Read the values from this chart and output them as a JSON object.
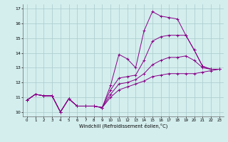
{
  "xlabel": "Windchill (Refroidissement éolien,°C)",
  "background_color": "#d4eeee",
  "grid_color": "#aacaca",
  "line_color": "#880088",
  "spine_color": "#666666",
  "ylim": [
    9.7,
    17.3
  ],
  "xlim": [
    -0.5,
    23.5
  ],
  "yticks": [
    10,
    11,
    12,
    13,
    14,
    15,
    16,
    17
  ],
  "xticks": [
    0,
    1,
    2,
    3,
    4,
    5,
    6,
    7,
    8,
    9,
    10,
    11,
    12,
    13,
    14,
    15,
    16,
    17,
    18,
    19,
    20,
    21,
    22,
    23
  ],
  "series": [
    {
      "x": [
        0,
        1,
        2,
        3,
        4,
        5,
        6,
        7,
        8,
        9,
        10,
        11,
        12,
        13,
        14,
        15,
        16,
        17,
        18,
        19,
        20,
        21,
        22,
        23
      ],
      "y": [
        10.8,
        11.2,
        11.1,
        11.1,
        10.0,
        10.9,
        10.4,
        10.4,
        10.4,
        10.3,
        11.8,
        13.9,
        13.6,
        13.0,
        15.5,
        16.8,
        16.5,
        16.4,
        16.3,
        15.2,
        14.2,
        13.1,
        12.9,
        12.9
      ]
    },
    {
      "x": [
        0,
        1,
        2,
        3,
        4,
        5,
        6,
        7,
        8,
        9,
        10,
        11,
        12,
        13,
        14,
        15,
        16,
        17,
        18,
        19,
        20,
        21,
        22,
        23
      ],
      "y": [
        10.8,
        11.2,
        11.1,
        11.1,
        10.0,
        10.9,
        10.4,
        10.4,
        10.4,
        10.3,
        11.5,
        12.3,
        12.4,
        12.5,
        13.5,
        14.8,
        15.1,
        15.2,
        15.2,
        15.2,
        14.2,
        13.1,
        12.9,
        12.9
      ]
    },
    {
      "x": [
        0,
        1,
        2,
        3,
        4,
        5,
        6,
        7,
        8,
        9,
        10,
        11,
        12,
        13,
        14,
        15,
        16,
        17,
        18,
        19,
        20,
        21,
        22,
        23
      ],
      "y": [
        10.8,
        11.2,
        11.1,
        11.1,
        10.0,
        10.9,
        10.4,
        10.4,
        10.4,
        10.3,
        11.2,
        11.9,
        12.0,
        12.2,
        12.6,
        13.2,
        13.5,
        13.7,
        13.7,
        13.8,
        13.5,
        13.0,
        12.9,
        12.9
      ]
    },
    {
      "x": [
        0,
        1,
        2,
        3,
        4,
        5,
        6,
        7,
        8,
        9,
        10,
        11,
        12,
        13,
        14,
        15,
        16,
        17,
        18,
        19,
        20,
        21,
        22,
        23
      ],
      "y": [
        10.8,
        11.2,
        11.1,
        11.1,
        10.0,
        10.9,
        10.4,
        10.4,
        10.4,
        10.3,
        11.0,
        11.5,
        11.7,
        11.9,
        12.1,
        12.4,
        12.5,
        12.6,
        12.6,
        12.6,
        12.6,
        12.7,
        12.8,
        12.9
      ]
    }
  ]
}
